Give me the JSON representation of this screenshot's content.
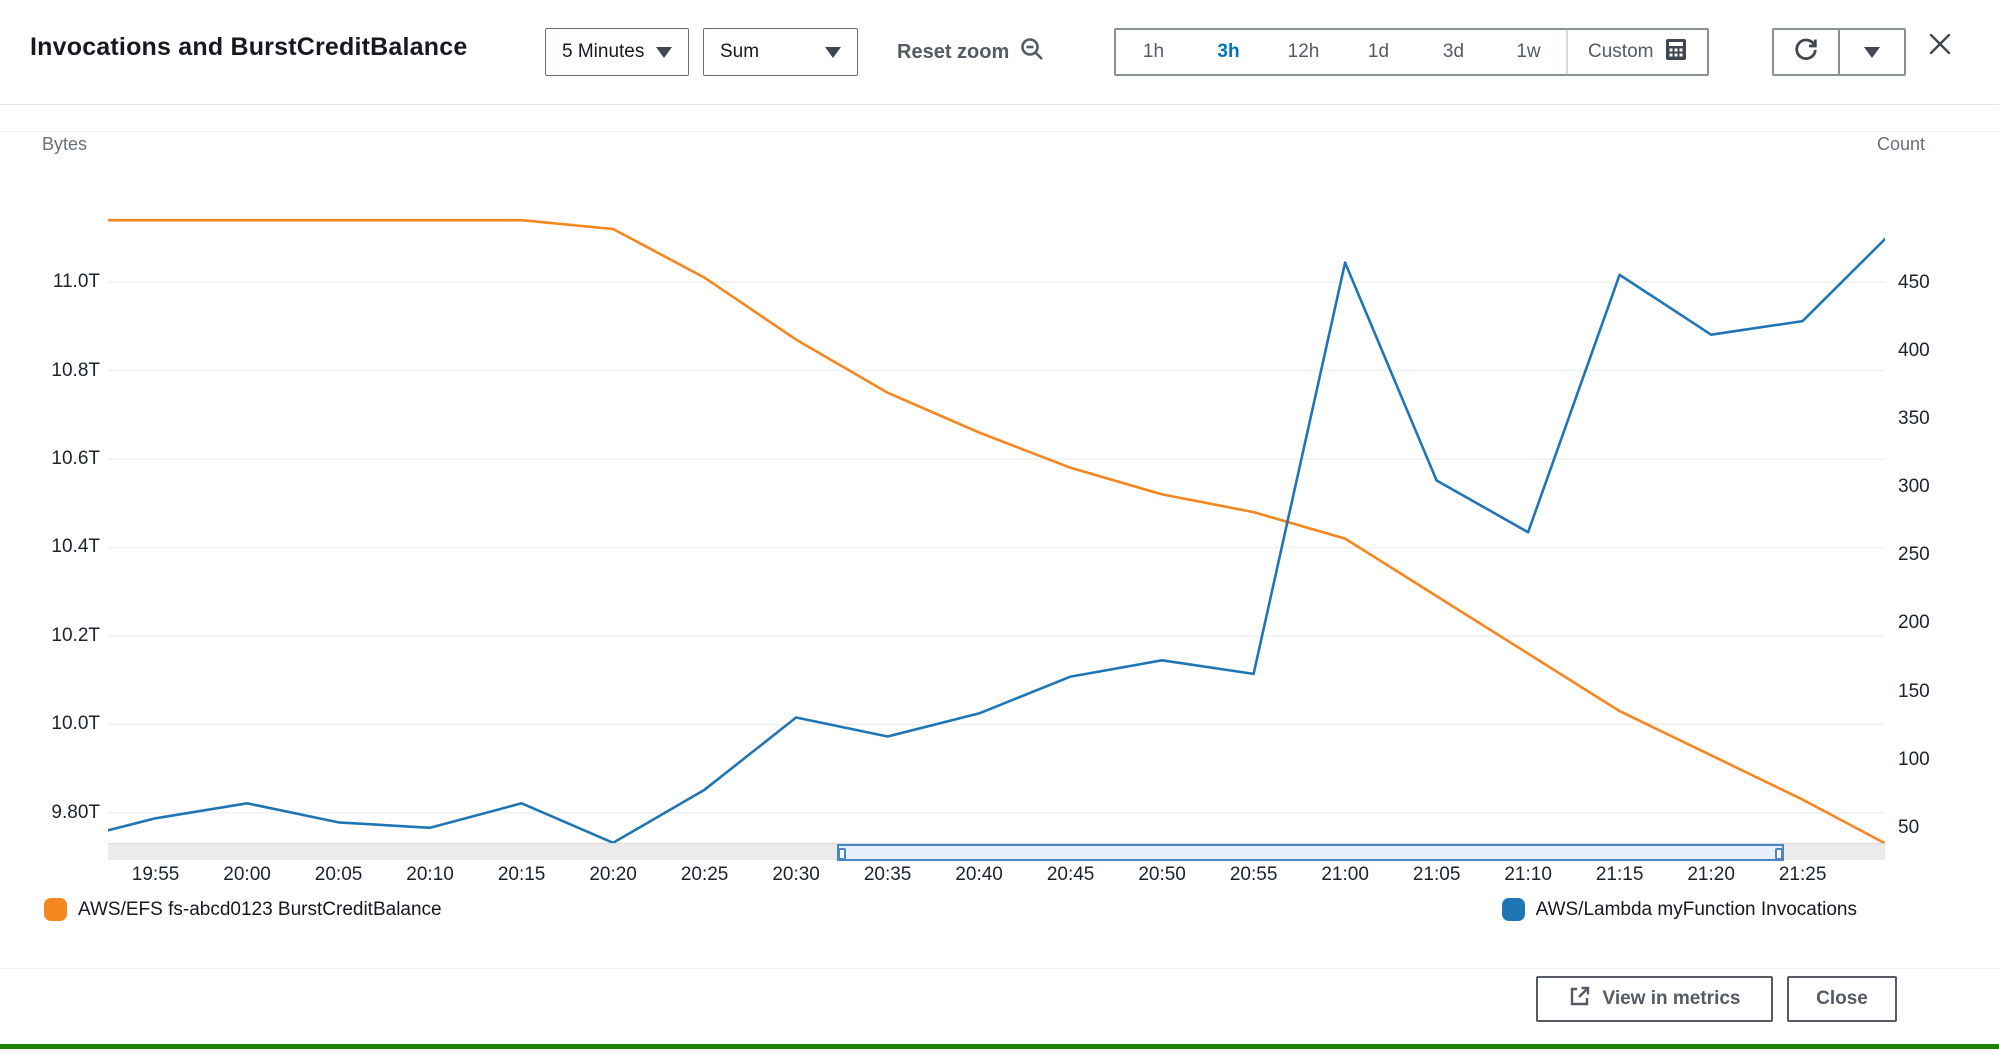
{
  "header": {
    "title": "Invocations and BurstCreditBalance",
    "period_dropdown": "5 Minutes",
    "stat_dropdown": "Sum",
    "reset_zoom": "Reset zoom",
    "time_ranges": [
      "1h",
      "3h",
      "12h",
      "1d",
      "3d",
      "1w"
    ],
    "selected_range": "3h",
    "custom_range": "Custom"
  },
  "chart": {
    "left_axis_label": "Bytes",
    "right_axis_label": "Count"
  },
  "legend": [
    {
      "label": "AWS/EFS fs-abcd0123 BurstCreditBalance",
      "color": "#f6861f"
    },
    {
      "label": "AWS/Lambda myFunction Invocations",
      "color": "#2076b4"
    }
  ],
  "footer": {
    "view_in_metrics": "View in metrics",
    "close": "Close"
  },
  "chart_data": {
    "type": "line",
    "title": "Invocations and BurstCreditBalance",
    "x_start": "19:50",
    "x_step_minutes": 5,
    "x_tick_labels": [
      "19:55",
      "20:00",
      "20:05",
      "20:10",
      "20:15",
      "20:20",
      "20:25",
      "20:30",
      "20:35",
      "20:40",
      "20:45",
      "20:50",
      "20:55",
      "21:00",
      "21:05",
      "21:10",
      "21:15",
      "21:20",
      "21:25"
    ],
    "series": [
      {
        "name": "AWS/EFS fs-abcd0123 BurstCreditBalance",
        "axis": "left",
        "unit": "Bytes (T)",
        "color": "#f6861f",
        "values": [
          11.14,
          11.14,
          11.14,
          11.14,
          11.14,
          11.14,
          11.12,
          11.01,
          10.87,
          10.75,
          10.66,
          10.58,
          10.52,
          10.48,
          10.42,
          10.29,
          10.16,
          10.03,
          9.93,
          9.83,
          9.72
        ]
      },
      {
        "name": "AWS/Lambda myFunction Invocations",
        "axis": "right",
        "unit": "Count",
        "color": "#2076b4",
        "values": [
          40,
          57,
          68,
          54,
          50,
          68,
          39,
          78,
          131,
          117,
          134,
          161,
          173,
          163,
          465,
          305,
          267,
          456,
          412,
          422,
          489
        ]
      }
    ],
    "left_tick_labels": [
      "11.0T",
      "10.8T",
      "10.6T",
      "10.4T",
      "10.2T",
      "10.0T",
      "9.80T"
    ],
    "left_tick_values": [
      11.0,
      10.8,
      10.6,
      10.4,
      10.2,
      10.0,
      9.8
    ],
    "right_tick_labels": [
      "450",
      "400",
      "350",
      "300",
      "250",
      "200",
      "150",
      "100",
      "50"
    ],
    "right_tick_values": [
      450,
      400,
      350,
      300,
      250,
      200,
      150,
      100,
      50
    ],
    "ylim_left": [
      9.716,
      11.276
    ],
    "ylim_right": [
      33.7,
      540.3
    ],
    "x_window_minutes": [
      2.4,
      99.5
    ],
    "grid": "horizontal-from-left-axis",
    "legend_position": "bottom",
    "zoom_selection_frac": [
      0.41,
      0.943
    ]
  }
}
